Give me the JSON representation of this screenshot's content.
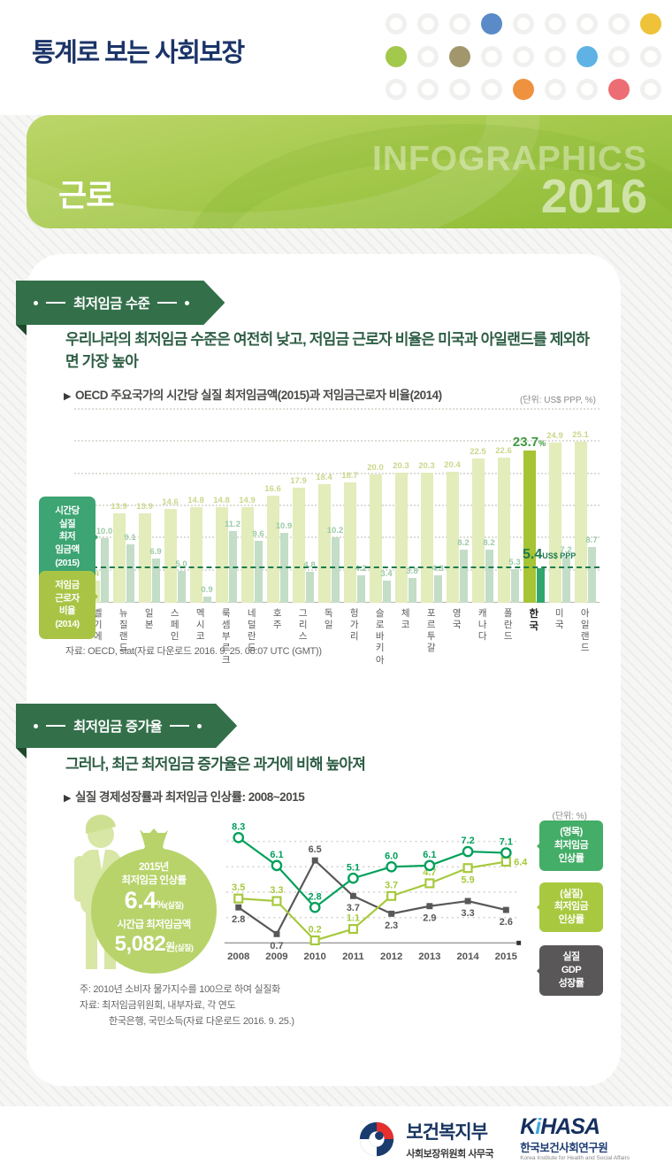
{
  "page": {
    "title": "통계로 보는 사회보장",
    "banner": {
      "category": "근로",
      "watermark_text": "INFOGRAPHICS",
      "watermark_year": "2016"
    }
  },
  "header_dots": {
    "rows": [
      [
        null,
        null,
        null,
        "#5b8ac8",
        null,
        null,
        null,
        null,
        "#eec339"
      ],
      [
        "#a2c84c",
        null,
        "#a2976c",
        null,
        null,
        null,
        "#5fb3e4",
        null,
        null
      ],
      [
        null,
        null,
        null,
        null,
        "#ef9240",
        null,
        null,
        "#ed6d75",
        null
      ]
    ]
  },
  "section1": {
    "badge": "최저임금 수준",
    "headline": "우리나라의 최저임금 수준은 여전히 낮고, 저임금 근로자 비율은 미국과 아일랜드를 제외하면 가장 높아",
    "chart_title_marker": "▶",
    "chart_title": "OECD 주요국가의 시간당 실질 최저임금액(2015)과 저임금근로자 비율(2014)",
    "unit": "(단위: US$ PPP, %)",
    "legend_wage": "시간당\n실질\n최저\n임금액\n(2015)\n(US$ PPP)",
    "legend_ratio": "저임금\n근로자\n비율\n(2014)",
    "source": "자료: OECD, stat(자료 다운로드 2016. 9. 25. 08:07 UTC (GMT))"
  },
  "section2": {
    "badge": "최저임금 증가율",
    "headline": "그러나, 최근 최저임금 증가율은 과거에 비해 높아져",
    "chart_title_marker": "▶",
    "chart_title": "실질 경제성장률과 최저임금 인상률: 2008~2015",
    "unit": "(단위: %)",
    "moneybag": {
      "line1": "2015년",
      "line2": "최저임금 인상률",
      "value1": "6.4",
      "value1_unit": "%",
      "value1_note": "(실질)",
      "line3": "시간급 최저임금액",
      "value2": "5,082",
      "value2_unit": "원",
      "value2_note": "(실질)"
    },
    "note": "주: 2010년 소비자 물가지수를 100으로 하여 실질화",
    "source1": "자료: 최저임금위원회, 내부자료, 각 연도",
    "source2": "한국은행, 국민소득(자료 다운로드 2016. 9. 25.)"
  },
  "footer": {
    "mohw_name": "보건복지부",
    "mohw_sub": "사회보장위원회 사무국",
    "kihasa_k": "K",
    "kihasa_i": "i",
    "kihasa_rest": "HASA",
    "kihasa_kor": "한국보건사회연구원",
    "kihasa_eng": "Korea Institute for Health and Social Affairs"
  },
  "chart_data": [
    {
      "type": "bar",
      "title": "OECD 주요국가의 시간당 실질 최저임금액(2015)과 저임금근로자 비율(2014)",
      "unit": "US$ PPP, %",
      "ylim": [
        0,
        30
      ],
      "gridlines": [
        5,
        10,
        15,
        20,
        25,
        30
      ],
      "grid_on": true,
      "highlight_index": 17,
      "reference_line": {
        "value": 5.4,
        "label": "5.4",
        "label_suffix": "US$ PPP",
        "color": "#1e7b4d"
      },
      "categories": [
        "벨기에",
        "뉴질랜드",
        "일본",
        "스페인",
        "멕시코",
        "룩셈부르크",
        "네덜란드",
        "호주",
        "그리스",
        "독일",
        "헝가리",
        "슬로바키아",
        "체코",
        "포르투갈",
        "영국",
        "캐나다",
        "폴란드",
        "한국",
        "미국",
        "아일랜드"
      ],
      "category_display": [
        "벨기에",
        "뉴질|랜드",
        "일본",
        "스페인",
        "멕시코",
        "룩셈|부르크",
        "네덜|란드",
        "호주",
        "그리스",
        "독일",
        "헝가리",
        "슬로|바키아",
        "체코",
        "포르|투갈",
        "영국",
        "캐나다",
        "폴란드",
        "한국",
        "미국",
        "아일|랜드"
      ],
      "series": [
        {
          "name": "저임금 근로자 비율(2014)",
          "color": "#e3ecbb",
          "highlight_color": "#a6c433",
          "values": [
            3.4,
            13.9,
            13.9,
            14.6,
            14.8,
            14.8,
            14.9,
            16.6,
            17.9,
            18.4,
            18.7,
            20.0,
            20.3,
            20.3,
            20.4,
            22.5,
            22.6,
            23.7,
            24.9,
            25.1
          ]
        },
        {
          "name": "시간당 실질 최저임금액(2015)",
          "color": "#c3ddc7",
          "highlight_color": "#2fa66b",
          "values": [
            10.0,
            9.1,
            6.9,
            5.0,
            0.9,
            11.2,
            9.6,
            10.9,
            4.8,
            10.2,
            4.2,
            3.4,
            3.8,
            4.3,
            8.2,
            8.2,
            5.3,
            5.4,
            7.2,
            8.7
          ]
        }
      ],
      "highlight_ratio_label": "23.7",
      "highlight_ratio_suffix": "%"
    },
    {
      "type": "line",
      "title": "실질 경제성장률과 최저임금 인상률: 2008~2015",
      "unit": "%",
      "x": [
        "2008",
        "2009",
        "2010",
        "2011",
        "2012",
        "2013",
        "2014",
        "2015"
      ],
      "ylim": [
        0,
        9
      ],
      "gridlines": [
        2,
        4,
        6,
        8
      ],
      "grid_on": true,
      "legend_position": "right",
      "series": [
        {
          "name": "실질 GDP 성장률",
          "color": "#595757",
          "marker": "square-filled",
          "values": [
            2.8,
            0.7,
            6.5,
            3.7,
            2.3,
            2.9,
            3.3,
            2.6
          ],
          "label_pos": [
            "below",
            "below",
            "above",
            "below",
            "below",
            "below",
            "below",
            "below"
          ]
        },
        {
          "name": "(실질) 최저임금 인상률",
          "color": "#a6c93c",
          "marker": "square-open",
          "values": [
            3.5,
            3.3,
            0.2,
            1.1,
            3.7,
            4.7,
            5.9,
            6.4
          ],
          "label_pos": [
            "above",
            "above",
            "above",
            "above",
            "above",
            "above",
            "below",
            "right"
          ]
        },
        {
          "name": "(명목) 최저임금 인상률",
          "color": "#00a05a",
          "marker": "circle",
          "values": [
            8.3,
            6.1,
            2.8,
            5.1,
            6.0,
            6.1,
            7.2,
            7.1
          ],
          "label_pos": [
            "above",
            "above",
            "above",
            "above",
            "above",
            "above",
            "above",
            "above"
          ]
        }
      ],
      "legend": [
        {
          "label": "(명목)\n최저임금\n인상률",
          "bg": "#44ad68"
        },
        {
          "label": "(실질)\n최저임금\n인상률",
          "bg": "#a8c93f"
        },
        {
          "label": "실질\nGDP\n성장률",
          "bg": "#595757"
        }
      ]
    }
  ]
}
